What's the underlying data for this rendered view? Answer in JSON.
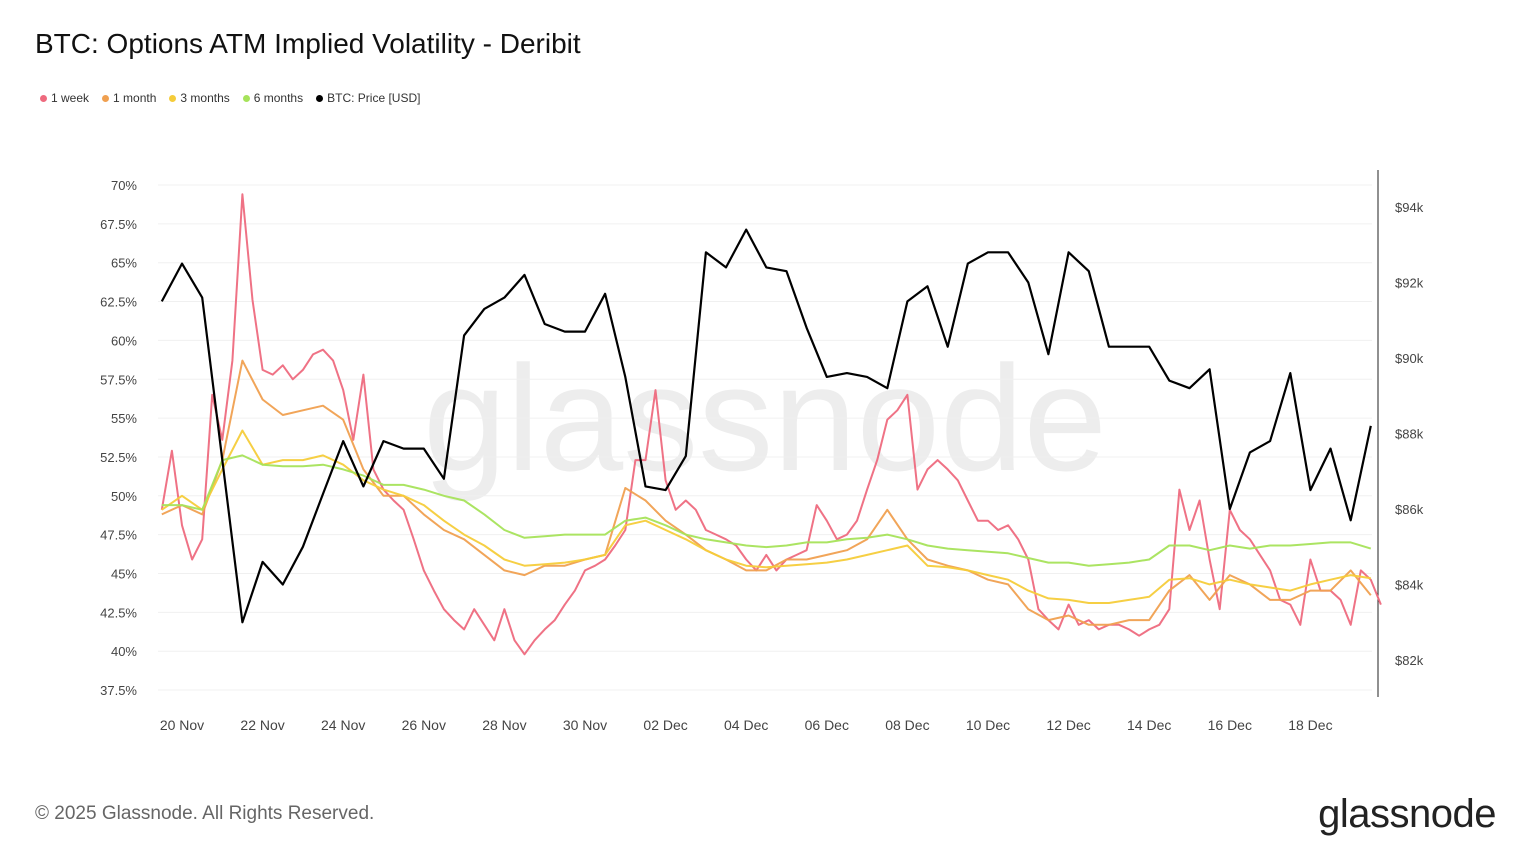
{
  "header": {
    "title": "BTC: Options ATM Implied Volatility - Deribit"
  },
  "footer": {
    "copyright": "© 2025 Glassnode. All Rights Reserved.",
    "logo": "glassnode",
    "watermark": "glassnode"
  },
  "chart_data": {
    "type": "line",
    "title": "BTC: Options ATM Implied Volatility - Deribit",
    "x_origin_label": "20 Nov",
    "x_unit": "days since 20 Nov",
    "x_range": [
      -0.5,
      29.5
    ],
    "x_ticks": [
      {
        "day": 0,
        "label": "20 Nov"
      },
      {
        "day": 2,
        "label": "22 Nov"
      },
      {
        "day": 4,
        "label": "24 Nov"
      },
      {
        "day": 6,
        "label": "26 Nov"
      },
      {
        "day": 8,
        "label": "28 Nov"
      },
      {
        "day": 10,
        "label": "30 Nov"
      },
      {
        "day": 12,
        "label": "02 Dec"
      },
      {
        "day": 14,
        "label": "04 Dec"
      },
      {
        "day": 16,
        "label": "06 Dec"
      },
      {
        "day": 18,
        "label": "08 Dec"
      },
      {
        "day": 20,
        "label": "10 Dec"
      },
      {
        "day": 22,
        "label": "12 Dec"
      },
      {
        "day": 24,
        "label": "14 Dec"
      },
      {
        "day": 26,
        "label": "16 Dec"
      },
      {
        "day": 28,
        "label": "18 Dec"
      }
    ],
    "y_left": {
      "label": "Implied Volatility",
      "range": [
        37.5,
        70
      ],
      "ticks": [
        {
          "v": 70,
          "label": "70%"
        },
        {
          "v": 67.5,
          "label": "67.5%"
        },
        {
          "v": 65,
          "label": "65%"
        },
        {
          "v": 62.5,
          "label": "62.5%"
        },
        {
          "v": 60,
          "label": "60%"
        },
        {
          "v": 57.5,
          "label": "57.5%"
        },
        {
          "v": 55,
          "label": "55%"
        },
        {
          "v": 52.5,
          "label": "52.5%"
        },
        {
          "v": 50,
          "label": "50%"
        },
        {
          "v": 47.5,
          "label": "47.5%"
        },
        {
          "v": 45,
          "label": "45%"
        },
        {
          "v": 42.5,
          "label": "42.5%"
        },
        {
          "v": 40,
          "label": "40%"
        },
        {
          "v": 37.5,
          "label": "37.5%"
        }
      ]
    },
    "y_right": {
      "label": "BTC: Price [USD]",
      "unit": "thousand USD",
      "ticks": [
        {
          "v": 94,
          "label": "$94k"
        },
        {
          "v": 92,
          "label": "$92k"
        },
        {
          "v": 90,
          "label": "$90k"
        },
        {
          "v": 88,
          "label": "$88k"
        },
        {
          "v": 86,
          "label": "$86k"
        },
        {
          "v": 84,
          "label": "$84k"
        },
        {
          "v": 82,
          "label": "$82k"
        }
      ]
    },
    "grid": true,
    "legend_position": "top-left",
    "series": [
      {
        "name": "1 week",
        "color": "#ee6a7e",
        "axis": "left",
        "x_start": -0.5,
        "step": 0.25,
        "values": [
          49.1,
          52.9,
          48.1,
          45.9,
          47.2,
          56.5,
          53.6,
          58.7,
          69.4,
          62.6,
          58.1,
          57.8,
          58.4,
          57.5,
          58.1,
          59.1,
          59.4,
          58.7,
          56.8,
          53.6,
          57.8,
          51.7,
          50.4,
          49.7,
          49.1,
          47.2,
          45.2,
          43.9,
          42.7,
          42.0,
          41.4,
          42.7,
          41.7,
          40.7,
          42.7,
          40.7,
          39.8,
          40.7,
          41.4,
          42.0,
          43.0,
          43.9,
          45.2,
          45.5,
          45.9,
          46.8,
          47.8,
          52.3,
          52.3,
          56.8,
          51.0,
          49.1,
          49.7,
          49.1,
          47.8,
          47.5,
          47.2,
          46.8,
          45.9,
          45.2,
          46.2,
          45.2,
          45.9,
          46.2,
          46.5,
          49.4,
          48.4,
          47.2,
          47.5,
          48.4,
          50.4,
          52.3,
          54.9,
          55.5,
          56.5,
          50.4,
          51.7,
          52.3,
          51.7,
          51.0,
          49.7,
          48.4,
          48.4,
          47.8,
          48.1,
          47.2,
          45.9,
          42.7,
          42.0,
          41.4,
          43.0,
          41.7,
          42.0,
          41.4,
          41.7,
          41.7,
          41.4,
          41.0,
          41.4,
          41.7,
          42.7,
          50.4,
          47.8,
          49.7,
          45.9,
          42.7,
          49.1,
          47.8,
          47.2,
          46.2,
          45.2,
          43.3,
          43.0,
          41.7,
          45.9,
          43.9,
          43.9,
          43.3,
          41.7,
          45.2,
          44.6,
          43.0
        ]
      },
      {
        "name": "1 month",
        "color": "#f0a050",
        "axis": "left",
        "x_start": -0.5,
        "step": 0.5,
        "values": [
          48.8,
          49.4,
          48.8,
          52.3,
          58.7,
          56.2,
          55.2,
          55.5,
          55.8,
          54.9,
          51.7,
          50.0,
          50.0,
          48.8,
          47.8,
          47.2,
          46.2,
          45.2,
          44.9,
          45.5,
          45.5,
          45.9,
          46.2,
          50.5,
          49.7,
          48.4,
          47.5,
          46.5,
          45.9,
          45.2,
          45.2,
          45.9,
          45.9,
          46.2,
          46.5,
          47.2,
          49.1,
          47.2,
          45.9,
          45.5,
          45.2,
          44.6,
          44.3,
          42.7,
          42.0,
          42.3,
          41.7,
          41.7,
          42.0,
          42.0,
          43.9,
          44.9,
          43.3,
          44.9,
          44.3,
          43.3,
          43.3,
          43.9,
          43.9,
          45.2,
          43.6
        ]
      },
      {
        "name": "3 months",
        "color": "#f5cc3a",
        "axis": "left",
        "x_start": -0.5,
        "step": 0.5,
        "values": [
          49.1,
          50.0,
          49.1,
          51.7,
          54.2,
          52.0,
          52.3,
          52.3,
          52.6,
          52.0,
          51.0,
          50.4,
          50.0,
          49.4,
          48.4,
          47.5,
          46.8,
          45.9,
          45.5,
          45.6,
          45.7,
          45.9,
          46.2,
          48.1,
          48.4,
          47.8,
          47.2,
          46.5,
          45.9,
          45.5,
          45.4,
          45.5,
          45.6,
          45.7,
          45.9,
          46.2,
          46.5,
          46.8,
          45.5,
          45.4,
          45.2,
          44.9,
          44.6,
          43.9,
          43.4,
          43.3,
          43.1,
          43.1,
          43.3,
          43.5,
          44.6,
          44.7,
          44.3,
          44.6,
          44.3,
          44.1,
          43.9,
          44.3,
          44.6,
          44.9,
          44.7
        ]
      },
      {
        "name": "6 months",
        "color": "#a6e35a",
        "axis": "left",
        "x_start": -0.5,
        "step": 0.5,
        "values": [
          49.4,
          49.4,
          49.1,
          52.3,
          52.6,
          52.0,
          51.9,
          51.9,
          52.0,
          51.7,
          51.3,
          50.7,
          50.7,
          50.4,
          50.0,
          49.7,
          48.8,
          47.8,
          47.3,
          47.4,
          47.5,
          47.5,
          47.5,
          48.4,
          48.6,
          48.1,
          47.5,
          47.2,
          47.0,
          46.8,
          46.7,
          46.8,
          47.0,
          47.0,
          47.2,
          47.3,
          47.5,
          47.2,
          46.8,
          46.6,
          46.5,
          46.4,
          46.3,
          46.0,
          45.7,
          45.7,
          45.5,
          45.6,
          45.7,
          45.9,
          46.8,
          46.8,
          46.5,
          46.8,
          46.6,
          46.8,
          46.8,
          46.9,
          47.0,
          47.0,
          46.6
        ]
      },
      {
        "name": "BTC: Price [USD]",
        "color": "#000000",
        "axis": "right",
        "x_start": -0.5,
        "step": 0.5,
        "values": [
          91.5,
          92.5,
          91.6,
          87.3,
          83.0,
          84.6,
          84.0,
          85.0,
          86.4,
          87.8,
          86.6,
          87.8,
          87.6,
          87.6,
          86.8,
          90.6,
          91.3,
          91.6,
          92.2,
          90.9,
          90.7,
          90.7,
          91.7,
          89.5,
          86.6,
          86.5,
          87.4,
          92.8,
          92.4,
          93.4,
          92.4,
          92.3,
          90.8,
          89.5,
          89.6,
          89.5,
          89.2,
          91.5,
          91.9,
          90.3,
          92.5,
          92.8,
          92.8,
          92.0,
          90.1,
          92.8,
          92.3,
          90.3,
          90.3,
          90.3,
          89.4,
          89.2,
          89.7,
          86.0,
          87.5,
          87.8,
          89.6,
          86.5,
          87.6,
          85.7,
          88.2
        ]
      }
    ]
  }
}
